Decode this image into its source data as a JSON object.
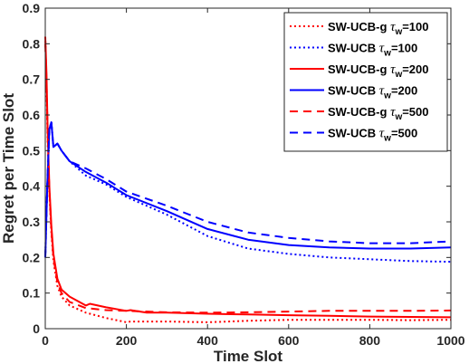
{
  "chart_data": {
    "type": "line",
    "xlabel": "Time Slot",
    "ylabel": "Regret per Time Slot",
    "xlim": [
      0,
      1000
    ],
    "ylim": [
      0,
      0.9
    ],
    "xticks": [
      "0",
      "200",
      "400",
      "600",
      "800",
      "1000"
    ],
    "yticks": [
      "0",
      "0.1",
      "0.2",
      "0.3",
      "0.4",
      "0.5",
      "0.6",
      "0.7",
      "0.8",
      "0.9"
    ],
    "grid": false,
    "legend_position": "top-right",
    "series": [
      {
        "name": "SW-UCB-g",
        "tau": "τ",
        "sub": "w",
        "suffix": "=100",
        "color": "#ff0000",
        "dash": "dotted",
        "points": [
          [
            0,
            0.82
          ],
          [
            3,
            0.68
          ],
          [
            6,
            0.52
          ],
          [
            10,
            0.38
          ],
          [
            15,
            0.27
          ],
          [
            20,
            0.19
          ],
          [
            30,
            0.12
          ],
          [
            40,
            0.09
          ],
          [
            60,
            0.065
          ],
          [
            100,
            0.045
          ],
          [
            150,
            0.03
          ],
          [
            200,
            0.018
          ],
          [
            210,
            0.02
          ],
          [
            300,
            0.02
          ],
          [
            400,
            0.018
          ],
          [
            500,
            0.022
          ],
          [
            600,
            0.025
          ],
          [
            700,
            0.025
          ],
          [
            800,
            0.025
          ],
          [
            900,
            0.024
          ],
          [
            1000,
            0.025
          ]
        ]
      },
      {
        "name": "SW-UCB",
        "tau": "τ",
        "sub": "w",
        "suffix": "=100",
        "color": "#0000ff",
        "dash": "dotted",
        "points": [
          [
            0,
            0.2
          ],
          [
            5,
            0.4
          ],
          [
            10,
            0.56
          ],
          [
            15,
            0.58
          ],
          [
            20,
            0.51
          ],
          [
            30,
            0.52
          ],
          [
            40,
            0.5
          ],
          [
            60,
            0.47
          ],
          [
            100,
            0.43
          ],
          [
            150,
            0.405
          ],
          [
            200,
            0.37
          ],
          [
            300,
            0.32
          ],
          [
            400,
            0.26
          ],
          [
            500,
            0.225
          ],
          [
            600,
            0.21
          ],
          [
            700,
            0.2
          ],
          [
            800,
            0.195
          ],
          [
            900,
            0.19
          ],
          [
            1000,
            0.188
          ]
        ]
      },
      {
        "name": "SW-UCB-g",
        "tau": "τ",
        "sub": "w",
        "suffix": "=200",
        "color": "#ff0000",
        "dash": "solid",
        "points": [
          [
            0,
            0.82
          ],
          [
            3,
            0.72
          ],
          [
            6,
            0.55
          ],
          [
            10,
            0.4
          ],
          [
            15,
            0.29
          ],
          [
            20,
            0.21
          ],
          [
            30,
            0.14
          ],
          [
            40,
            0.11
          ],
          [
            60,
            0.09
          ],
          [
            100,
            0.065
          ],
          [
            110,
            0.07
          ],
          [
            150,
            0.06
          ],
          [
            200,
            0.05
          ],
          [
            210,
            0.052
          ],
          [
            250,
            0.045
          ],
          [
            300,
            0.045
          ],
          [
            400,
            0.042
          ],
          [
            500,
            0.04
          ],
          [
            600,
            0.038
          ],
          [
            700,
            0.036
          ],
          [
            800,
            0.034
          ],
          [
            900,
            0.033
          ],
          [
            1000,
            0.032
          ]
        ]
      },
      {
        "name": "SW-UCB",
        "tau": "τ",
        "sub": "w",
        "suffix": "=200",
        "color": "#0000ff",
        "dash": "solid",
        "points": [
          [
            0,
            0.2
          ],
          [
            5,
            0.4
          ],
          [
            10,
            0.56
          ],
          [
            15,
            0.58
          ],
          [
            20,
            0.51
          ],
          [
            30,
            0.52
          ],
          [
            40,
            0.5
          ],
          [
            60,
            0.47
          ],
          [
            100,
            0.44
          ],
          [
            150,
            0.41
          ],
          [
            200,
            0.375
          ],
          [
            300,
            0.33
          ],
          [
            400,
            0.28
          ],
          [
            500,
            0.25
          ],
          [
            600,
            0.235
          ],
          [
            700,
            0.228
          ],
          [
            800,
            0.225
          ],
          [
            900,
            0.225
          ],
          [
            1000,
            0.228
          ]
        ]
      },
      {
        "name": "SW-UCB-g",
        "tau": "τ",
        "sub": "w",
        "suffix": "=500",
        "color": "#ff0000",
        "dash": "dashed",
        "points": [
          [
            0,
            0.8
          ],
          [
            3,
            0.7
          ],
          [
            6,
            0.54
          ],
          [
            10,
            0.39
          ],
          [
            15,
            0.28
          ],
          [
            20,
            0.2
          ],
          [
            30,
            0.13
          ],
          [
            40,
            0.1
          ],
          [
            60,
            0.075
          ],
          [
            100,
            0.058
          ],
          [
            150,
            0.052
          ],
          [
            200,
            0.05
          ],
          [
            300,
            0.046
          ],
          [
            400,
            0.045
          ],
          [
            500,
            0.046
          ],
          [
            600,
            0.048
          ],
          [
            700,
            0.05
          ],
          [
            800,
            0.05
          ],
          [
            900,
            0.05
          ],
          [
            1000,
            0.051
          ]
        ]
      },
      {
        "name": "SW-UCB",
        "tau": "τ",
        "sub": "w",
        "suffix": "=500",
        "color": "#0000ff",
        "dash": "dashed",
        "points": [
          [
            0,
            0.2
          ],
          [
            5,
            0.4
          ],
          [
            10,
            0.56
          ],
          [
            15,
            0.58
          ],
          [
            20,
            0.51
          ],
          [
            30,
            0.52
          ],
          [
            40,
            0.5
          ],
          [
            60,
            0.47
          ],
          [
            100,
            0.45
          ],
          [
            150,
            0.42
          ],
          [
            200,
            0.385
          ],
          [
            300,
            0.345
          ],
          [
            400,
            0.3
          ],
          [
            500,
            0.27
          ],
          [
            600,
            0.255
          ],
          [
            700,
            0.245
          ],
          [
            800,
            0.24
          ],
          [
            900,
            0.24
          ],
          [
            1000,
            0.245
          ]
        ]
      }
    ]
  }
}
